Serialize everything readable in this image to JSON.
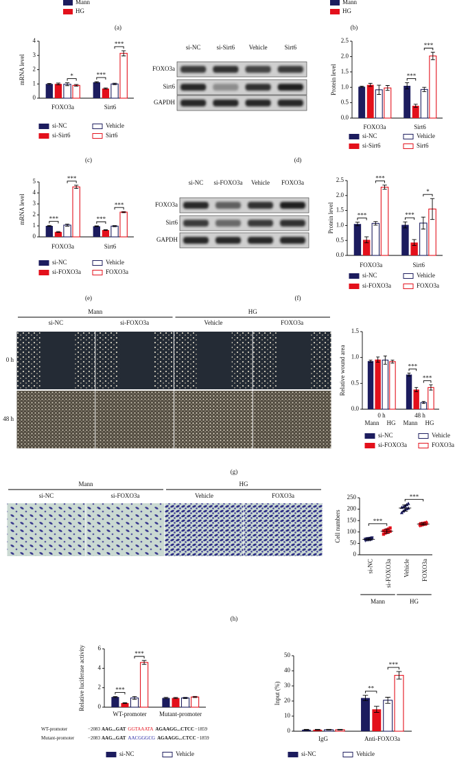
{
  "legend_fragments": [
    {
      "items": [
        {
          "name": "Mann",
          "color": "#1c1c5e"
        },
        {
          "name": "HG",
          "color": "#e3101b"
        }
      ]
    },
    {
      "items": [
        {
          "name": "Mann",
          "color": "#1c1c5e"
        },
        {
          "name": "HG",
          "color": "#e3101b"
        }
      ]
    }
  ],
  "panel_labels": [
    "(a)",
    "(b)",
    "(c)",
    "(d)",
    "(e)",
    "(f)",
    "(g)",
    "(h)"
  ],
  "blots": [
    {
      "lanes": [
        "si-NC",
        "si-Sirt6",
        "Vehicle",
        "Sirt6"
      ],
      "rows": [
        "FOXO3a",
        "Sirt6",
        "GAPDH"
      ]
    },
    {
      "lanes": [
        "si-NC",
        "si-FOXO3a",
        "Vehicle",
        "FOXO3a"
      ],
      "rows": [
        "FOXO3a",
        "Sirt6",
        "GAPDH"
      ]
    }
  ],
  "micrographs": [
    {
      "groups": [
        "Mann",
        "HG"
      ],
      "columns": [
        "si-NC",
        "si-FOXO3a",
        "Vehicle",
        "FOXO3a"
      ],
      "rows": [
        "0 h",
        "48 h"
      ]
    },
    {
      "groups": [
        "Mann",
        "HG"
      ],
      "columns": [
        "si-NC",
        "si-FOXO3a",
        "Vehicle",
        "FOXO3a"
      ]
    }
  ],
  "sequences": [
    {
      "name": "WT-promoter",
      "start": "−2083",
      "prefix": "AAG...GAT",
      "site": "GGTAAATA",
      "suffix": "AGAAGG...CTCC",
      "end": "−1859",
      "site_color": "#e3101b"
    },
    {
      "name": "Mutant-promoter",
      "start": "−2083",
      "prefix": "AAG...GAT",
      "site": "AACGGGCG",
      "suffix": "AGAAGG...CTCC",
      "end": "−1859",
      "site_color": "#1c1c9e"
    }
  ],
  "chart_data": [
    {
      "type": "bar",
      "y_label": "mRNA level",
      "ylim": [
        0,
        4
      ],
      "yticks": [
        0,
        1,
        2,
        3,
        4
      ],
      "categories": [
        "FOXO3a",
        "Sirt6"
      ],
      "series": [
        {
          "name": "si-NC",
          "color": "#1c1c5e",
          "filled": true,
          "values": [
            1.0,
            1.12
          ],
          "errors": [
            0.04,
            0.04
          ]
        },
        {
          "name": "si-Sirt6",
          "color": "#e3101b",
          "filled": true,
          "values": [
            1.0,
            0.68
          ],
          "errors": [
            0.06,
            0.04
          ]
        },
        {
          "name": "Vehicle",
          "color": "#1c1c5e",
          "filled": false,
          "values": [
            0.98,
            1.0
          ],
          "errors": [
            0.1,
            0.05
          ]
        },
        {
          "name": "Sirt6",
          "color": "#e3101b",
          "filled": false,
          "values": [
            0.9,
            3.15
          ],
          "errors": [
            0.06,
            0.18
          ]
        }
      ],
      "significance": [
        {
          "category": 0,
          "from": 2,
          "to": 3,
          "label": "*"
        },
        {
          "category": 1,
          "from": 0,
          "to": 1,
          "label": "***"
        },
        {
          "category": 1,
          "from": 2,
          "to": 3,
          "label": "***"
        }
      ]
    },
    {
      "type": "bar",
      "y_label": "Protein level",
      "ylim": [
        0,
        2.5
      ],
      "yticks": [
        {
          "value": 0,
          "label": "0.0"
        },
        0.5,
        {
          "value": 1,
          "label": "1.0"
        },
        1.5,
        {
          "value": 2,
          "label": "2.0"
        },
        2.5
      ],
      "categories": [
        "FOXO3a",
        "Sirt6"
      ],
      "series": [
        {
          "name": "si-NC",
          "color": "#1c1c5e",
          "filled": true,
          "values": [
            1.02,
            1.05
          ],
          "errors": [
            0.02,
            0.1
          ]
        },
        {
          "name": "si-Sirt6",
          "color": "#e3101b",
          "filled": true,
          "values": [
            1.08,
            0.4
          ],
          "errors": [
            0.05,
            0.05
          ]
        },
        {
          "name": "Vehicle",
          "color": "#1c1c5e",
          "filled": false,
          "values": [
            0.92,
            0.93
          ],
          "errors": [
            0.15,
            0.07
          ]
        },
        {
          "name": "Sirt6",
          "color": "#e3101b",
          "filled": false,
          "values": [
            0.98,
            2.02
          ],
          "errors": [
            0.08,
            0.12
          ]
        }
      ],
      "significance": [
        {
          "category": 1,
          "from": 0,
          "to": 1,
          "label": "***"
        },
        {
          "category": 1,
          "from": 2,
          "to": 3,
          "label": "***"
        }
      ]
    },
    {
      "type": "bar",
      "y_label": "mRNA level",
      "ylim": [
        0,
        5
      ],
      "yticks": [
        0,
        1,
        2,
        3,
        4,
        5
      ],
      "categories": [
        "FOXO3a",
        "Sirt6"
      ],
      "series": [
        {
          "name": "si-NC",
          "color": "#1c1c5e",
          "filled": true,
          "values": [
            1.0,
            0.97
          ],
          "errors": [
            0.04,
            0.03
          ]
        },
        {
          "name": "si-FOXO3a",
          "color": "#e3101b",
          "filled": true,
          "values": [
            0.45,
            0.62
          ],
          "errors": [
            0.04,
            0.03
          ]
        },
        {
          "name": "Vehicle",
          "color": "#1c1c5e",
          "filled": false,
          "values": [
            1.07,
            0.98
          ],
          "errors": [
            0.1,
            0.05
          ]
        },
        {
          "name": "FOXO3a",
          "color": "#e3101b",
          "filled": false,
          "values": [
            4.55,
            2.25
          ],
          "errors": [
            0.15,
            0.05
          ]
        }
      ],
      "significance": [
        {
          "category": 0,
          "from": 0,
          "to": 1,
          "label": "***"
        },
        {
          "category": 0,
          "from": 2,
          "to": 3,
          "label": "***"
        },
        {
          "category": 1,
          "from": 0,
          "to": 1,
          "label": "***"
        },
        {
          "category": 1,
          "from": 2,
          "to": 3,
          "label": "***"
        }
      ]
    },
    {
      "type": "bar",
      "y_label": "Protein level",
      "ylim": [
        0,
        2.5
      ],
      "yticks": [
        {
          "value": 0,
          "label": "0.0"
        },
        0.5,
        {
          "value": 1,
          "label": "1.0"
        },
        1.5,
        {
          "value": 2,
          "label": "2.0"
        },
        2.5
      ],
      "categories": [
        "FOXO3a",
        "Sirt6"
      ],
      "series": [
        {
          "name": "si-NC",
          "color": "#1c1c5e",
          "filled": true,
          "values": [
            1.05,
            1.02
          ],
          "errors": [
            0.06,
            0.1
          ]
        },
        {
          "name": "si-FOXO3a",
          "color": "#e3101b",
          "filled": true,
          "values": [
            0.52,
            0.43
          ],
          "errors": [
            0.1,
            0.1
          ]
        },
        {
          "name": "Vehicle",
          "color": "#1c1c5e",
          "filled": false,
          "values": [
            1.07,
            1.08
          ],
          "errors": [
            0.06,
            0.2
          ]
        },
        {
          "name": "FOXO3a",
          "color": "#e3101b",
          "filled": false,
          "values": [
            2.28,
            1.55
          ],
          "errors": [
            0.07,
            0.35
          ]
        }
      ],
      "significance": [
        {
          "category": 0,
          "from": 0,
          "to": 1,
          "label": "***"
        },
        {
          "category": 0,
          "from": 2,
          "to": 3,
          "label": "***"
        },
        {
          "category": 1,
          "from": 0,
          "to": 1,
          "label": "***"
        },
        {
          "category": 1,
          "from": 2,
          "to": 3,
          "label": "*"
        }
      ]
    },
    {
      "type": "bar",
      "y_label": "Relative wound area",
      "ylim": [
        0,
        1.5
      ],
      "yticks": [
        {
          "value": 0,
          "label": "0.0"
        },
        0.5,
        {
          "value": 1,
          "label": "1.0"
        },
        1.5
      ],
      "categories": [
        "0 h",
        "48 h"
      ],
      "sublabels": [
        [
          "Mann",
          "HG"
        ],
        [
          "Mann",
          "HG"
        ]
      ],
      "series": [
        {
          "name": "si-NC",
          "color": "#1c1c5e",
          "filled": true,
          "values": [
            0.93,
            0.67
          ],
          "errors": [
            0.02,
            0.03
          ]
        },
        {
          "name": "si-FOXO3a",
          "color": "#e3101b",
          "filled": true,
          "values": [
            0.96,
            0.38
          ],
          "errors": [
            0.05,
            0.04
          ]
        },
        {
          "name": "Vehicle",
          "color": "#1c1c5e",
          "filled": false,
          "values": [
            0.95,
            0.13
          ],
          "errors": [
            0.08,
            0.02
          ]
        },
        {
          "name": "FOXO3a",
          "color": "#e3101b",
          "filled": false,
          "values": [
            0.92,
            0.42
          ],
          "errors": [
            0.03,
            0.05
          ]
        }
      ],
      "significance": [
        {
          "category": 1,
          "from": 0,
          "to": 1,
          "label": "***"
        },
        {
          "category": 1,
          "from": 2,
          "to": 3,
          "label": "***"
        }
      ]
    },
    {
      "type": "dot",
      "y_label": "Cell numbers",
      "ylim": [
        0,
        250
      ],
      "yticks": [
        0,
        50,
        100,
        150,
        200,
        250
      ],
      "categories": [
        "si-NC",
        "si-FOXO3a",
        "Vehicle",
        "FOXO3a"
      ],
      "colors": [
        "#1c1c5e",
        "#e3101b",
        "#1c1c5e",
        "#e3101b"
      ],
      "markers": [
        "triangle-down",
        "square",
        "triangle",
        "diamond"
      ],
      "points": [
        [
          62,
          64,
          65,
          66,
          68,
          68,
          70,
          71,
          72,
          74
        ],
        [
          90,
          95,
          98,
          100,
          103,
          105,
          107,
          110,
          113,
          118
        ],
        [
          185,
          192,
          198,
          202,
          205,
          208,
          210,
          215,
          220,
          225
        ],
        [
          128,
          130,
          132,
          134,
          135,
          136,
          137,
          138,
          140,
          142
        ]
      ],
      "means": [
        68,
        103,
        205,
        135
      ],
      "errors": [
        5,
        9,
        14,
        5
      ],
      "groups": [
        {
          "label": "Mann",
          "from": 0,
          "to": 1
        },
        {
          "label": "HG",
          "from": 2,
          "to": 3
        }
      ],
      "significance": [
        {
          "from": 0,
          "to": 1,
          "label": "***"
        },
        {
          "from": 2,
          "to": 3,
          "label": "***"
        }
      ]
    },
    {
      "type": "bar",
      "y_label": "Relative luciferase activity",
      "ylim": [
        0,
        6
      ],
      "yticks": [
        0,
        2,
        4,
        6
      ],
      "categories": [
        "WT-promoter",
        "Mutant-promoter"
      ],
      "series": [
        {
          "name": "si-NC",
          "color": "#1c1c5e",
          "filled": true,
          "values": [
            1.05,
            0.95
          ],
          "errors": [
            0.05,
            0.06
          ]
        },
        {
          "color": "#e3101b",
          "filled": true,
          "values": [
            0.42,
            0.95
          ],
          "errors": [
            0.04,
            0.05
          ]
        },
        {
          "name": "Vehicle",
          "color": "#1c1c5e",
          "filled": false,
          "values": [
            0.95,
            0.95
          ],
          "errors": [
            0.15,
            0.06
          ]
        },
        {
          "color": "#e3101b",
          "filled": false,
          "values": [
            4.6,
            1.05
          ],
          "errors": [
            0.2,
            0.06
          ]
        }
      ],
      "significance": [
        {
          "category": 0,
          "from": 0,
          "to": 1,
          "label": "***"
        },
        {
          "category": 0,
          "from": 2,
          "to": 3,
          "label": "***"
        }
      ]
    },
    {
      "type": "bar",
      "y_label": "Input (%)",
      "ylim": [
        0,
        50
      ],
      "yticks": [
        0,
        10,
        20,
        30,
        40,
        50
      ],
      "categories": [
        "IgG",
        "Anti-FOXO3a"
      ],
      "series": [
        {
          "name": "si-NC",
          "color": "#1c1c5e",
          "filled": true,
          "values": [
            1.0,
            22
          ],
          "errors": [
            0.2,
            1.8
          ]
        },
        {
          "color": "#e3101b",
          "filled": true,
          "values": [
            1.0,
            14.5
          ],
          "errors": [
            0.2,
            2
          ]
        },
        {
          "name": "Vehicle",
          "color": "#1c1c5e",
          "filled": false,
          "values": [
            1.0,
            20.5
          ],
          "errors": [
            0.2,
            2
          ]
        },
        {
          "color": "#e3101b",
          "filled": false,
          "values": [
            1.0,
            37
          ],
          "errors": [
            0.2,
            2.5
          ]
        }
      ],
      "significance": [
        {
          "category": 1,
          "from": 0,
          "to": 1,
          "label": "**"
        },
        {
          "category": 1,
          "from": 2,
          "to": 3,
          "label": "***"
        }
      ]
    }
  ]
}
